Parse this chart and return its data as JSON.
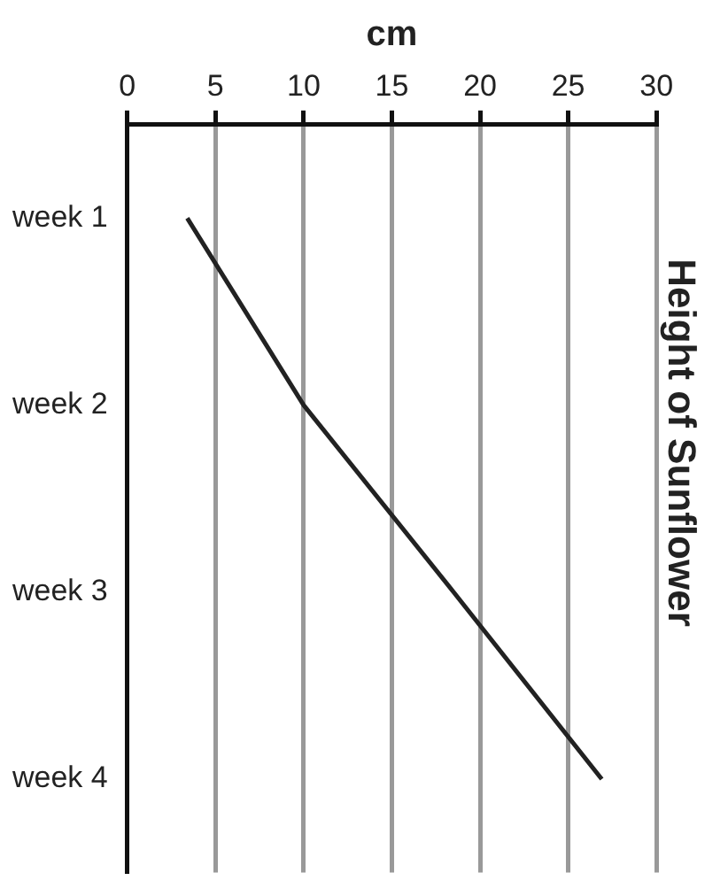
{
  "chart_data": {
    "type": "line",
    "orientation": "horizontal",
    "title": "Height of Sunflower",
    "xlabel": "cm",
    "categories": [
      "week 1",
      "week 2",
      "week 3",
      "week 4"
    ],
    "series": [
      {
        "color": "#222222",
        "values": [
          3.4,
          10,
          18.5,
          26.9
        ]
      }
    ],
    "xlim": [
      0,
      30
    ],
    "xticks": [
      0,
      5,
      10,
      15,
      20,
      25,
      30
    ],
    "grid": "x",
    "legend": false,
    "marker": "none",
    "line_style": "solid"
  }
}
